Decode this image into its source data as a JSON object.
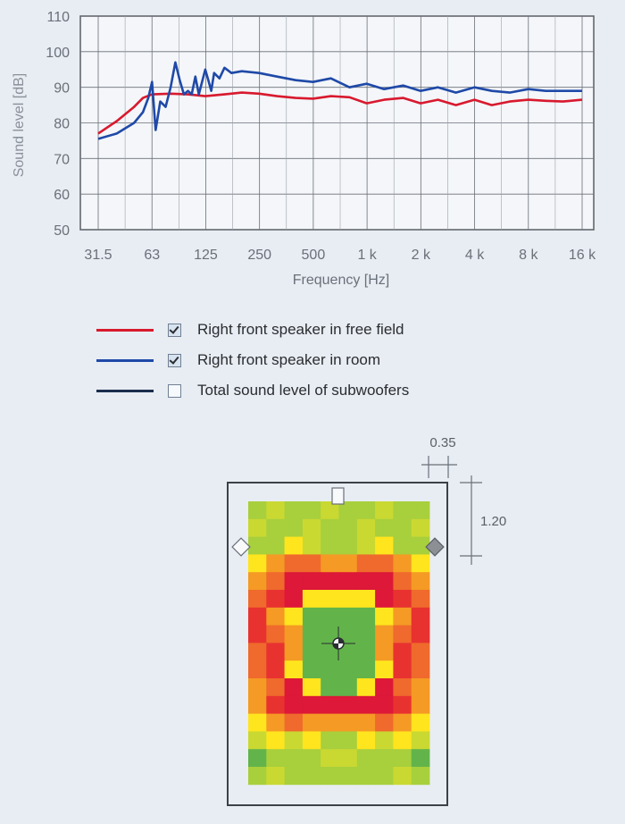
{
  "chart_data": {
    "type": "line",
    "xlabel": "Frequency [Hz]",
    "ylabel": "Sound level [dB]",
    "x_ticks": [
      "31.5",
      "63",
      "125",
      "250",
      "500",
      "1 k",
      "2 k",
      "4 k",
      "8 k",
      "16 k"
    ],
    "y_ticks": [
      "110",
      "100",
      "90",
      "80",
      "70",
      "60",
      "50"
    ],
    "ylim": [
      50,
      110
    ],
    "x_scale": "log",
    "grid": true,
    "series": [
      {
        "name": "Right front speaker in free field",
        "color": "#d8192e",
        "x": [
          31.5,
          40,
          50,
          56,
          63,
          80,
          100,
          125,
          160,
          200,
          250,
          315,
          400,
          500,
          630,
          800,
          1000,
          1250,
          1600,
          2000,
          2500,
          3150,
          4000,
          5000,
          6300,
          8000,
          10000,
          12500,
          16000
        ],
        "y": [
          77,
          80.5,
          84.5,
          87,
          88,
          88.2,
          88,
          87.5,
          88,
          88.5,
          88.2,
          87.5,
          87,
          86.8,
          87.5,
          87.2,
          85.5,
          86.5,
          87,
          85.5,
          86.5,
          85,
          86.5,
          85,
          86,
          86.5,
          86.2,
          86,
          86.5
        ],
        "checked": true
      },
      {
        "name": "Right front speaker in room",
        "color": "#1f49a8",
        "x": [
          31.5,
          40,
          50,
          56,
          60,
          63,
          66,
          70,
          75,
          80,
          85,
          90,
          95,
          100,
          105,
          110,
          115,
          125,
          130,
          135,
          140,
          150,
          160,
          175,
          200,
          250,
          315,
          400,
          500,
          630,
          800,
          1000,
          1250,
          1600,
          2000,
          2500,
          3150,
          4000,
          5000,
          6300,
          8000,
          10000,
          12500,
          16000
        ],
        "y": [
          75.5,
          77,
          80,
          83,
          87,
          91.5,
          78,
          86,
          84.5,
          90,
          97,
          92,
          88,
          89,
          88,
          93,
          88,
          95,
          92,
          89,
          94,
          92.5,
          95.5,
          94,
          94.5,
          94,
          93,
          92,
          91.5,
          92.5,
          90,
          91,
          89.5,
          90.5,
          89,
          90,
          88.5,
          90,
          89,
          88.5,
          89.5,
          89,
          89,
          89
        ],
        "checked": true
      },
      {
        "name": "Total sound level of subwoofers",
        "color": "#1a2e4d",
        "x": [],
        "y": [],
        "checked": false
      }
    ]
  },
  "room_map": {
    "dim_width": "0.35",
    "dim_height": "1.20",
    "colors": {
      "lg": "#a8cf3c",
      "yg": "#c9d932",
      "g": "#62b44a",
      "y": "#ffe51e",
      "o": "#f59a24",
      "r": "#e83230",
      "rd": "#dd1838",
      "ro": "#ef6a2c"
    },
    "grid": [
      [
        "lg",
        "yg",
        "lg",
        "lg",
        "yg",
        "lg",
        "lg",
        "yg",
        "lg",
        "lg"
      ],
      [
        "yg",
        "lg",
        "lg",
        "yg",
        "lg",
        "lg",
        "yg",
        "lg",
        "lg",
        "yg"
      ],
      [
        "lg",
        "lg",
        "y",
        "yg",
        "lg",
        "lg",
        "yg",
        "y",
        "lg",
        "lg"
      ],
      [
        "y",
        "o",
        "ro",
        "ro",
        "o",
        "o",
        "ro",
        "ro",
        "o",
        "y"
      ],
      [
        "o",
        "ro",
        "rd",
        "rd",
        "rd",
        "rd",
        "rd",
        "rd",
        "ro",
        "o"
      ],
      [
        "ro",
        "r",
        "rd",
        "y",
        "y",
        "y",
        "y",
        "rd",
        "r",
        "ro"
      ],
      [
        "r",
        "o",
        "y",
        "g",
        "g",
        "g",
        "g",
        "y",
        "o",
        "r"
      ],
      [
        "r",
        "ro",
        "o",
        "g",
        "g",
        "g",
        "g",
        "o",
        "ro",
        "r"
      ],
      [
        "ro",
        "r",
        "o",
        "g",
        "g",
        "g",
        "g",
        "o",
        "r",
        "ro"
      ],
      [
        "ro",
        "r",
        "y",
        "g",
        "g",
        "g",
        "g",
        "y",
        "r",
        "ro"
      ],
      [
        "o",
        "ro",
        "rd",
        "y",
        "g",
        "g",
        "y",
        "rd",
        "ro",
        "o"
      ],
      [
        "o",
        "r",
        "rd",
        "rd",
        "rd",
        "rd",
        "rd",
        "rd",
        "r",
        "o"
      ],
      [
        "y",
        "o",
        "ro",
        "o",
        "o",
        "o",
        "o",
        "ro",
        "o",
        "y"
      ],
      [
        "yg",
        "y",
        "yg",
        "y",
        "lg",
        "lg",
        "y",
        "yg",
        "y",
        "yg"
      ],
      [
        "g",
        "lg",
        "lg",
        "lg",
        "yg",
        "yg",
        "lg",
        "lg",
        "lg",
        "g"
      ],
      [
        "lg",
        "yg",
        "lg",
        "lg",
        "lg",
        "lg",
        "lg",
        "lg",
        "yg",
        "lg"
      ]
    ]
  }
}
